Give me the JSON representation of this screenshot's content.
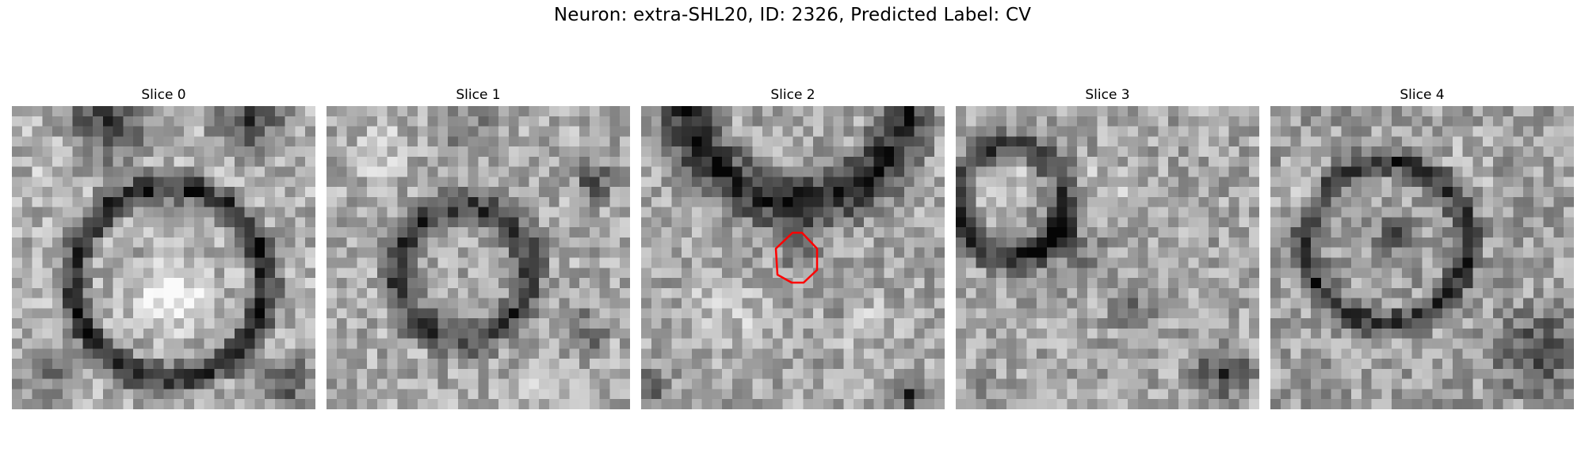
{
  "figure": {
    "title": "Neuron: extra-SHL20, ID: 2326, Predicted Label: CV"
  },
  "slices": [
    {
      "label": "Slice 0",
      "has_outline": false
    },
    {
      "label": "Slice 1",
      "has_outline": false
    },
    {
      "label": "Slice 2",
      "has_outline": true
    },
    {
      "label": "Slice 3",
      "has_outline": false
    },
    {
      "label": "Slice 4",
      "has_outline": false
    }
  ],
  "colors": {
    "outline": "#ff0000",
    "background": "#ffffff"
  }
}
